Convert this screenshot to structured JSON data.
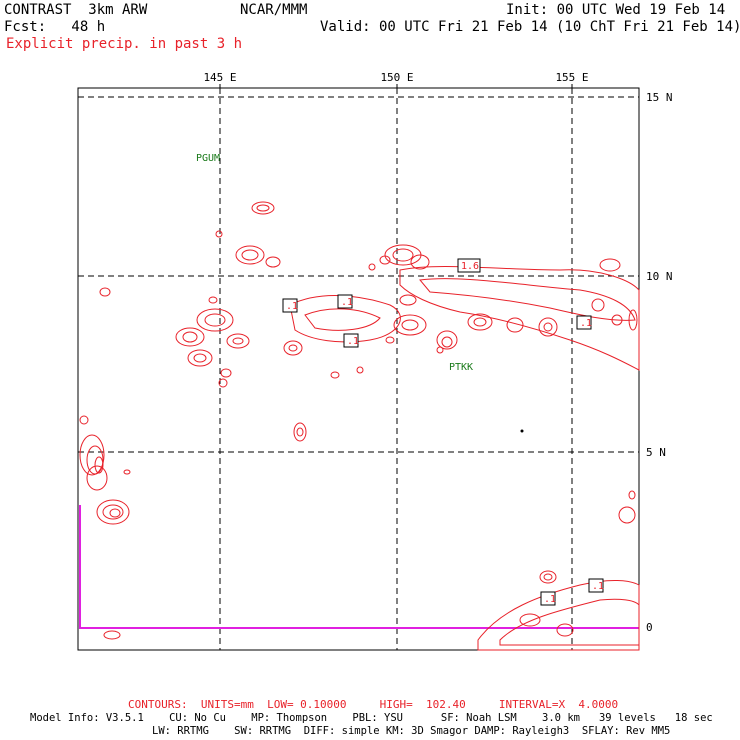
{
  "header": {
    "model_title": "CONTRAST  3km ARW",
    "org": "NCAR/MMM",
    "init": "Init: 00 UTC Wed 19 Feb 14",
    "fcst": "Fcst:   48 h",
    "valid": "Valid: 00 UTC Fri 21 Feb 14 (10 ChT Fri 21 Feb 14)",
    "field": "Explicit precip. in past 3 h"
  },
  "map": {
    "lon_labels": [
      "145 E",
      "150 E",
      "155 E"
    ],
    "lat_labels": [
      "15 N",
      "10 N",
      "5 N",
      "0"
    ],
    "stations": [
      "PGUM",
      "PTKK"
    ],
    "contour_labels": [
      ".1",
      ".1",
      ".1",
      "1.6",
      ".1",
      ".1",
      ".1"
    ],
    "colors": {
      "precip": "#e8222a",
      "grid": "#000000",
      "station": "#1a7a1a",
      "boundary": "#e020e0"
    }
  },
  "footer": {
    "contours": "CONTOURS:  UNITS=mm  LOW= 0.10000     HIGH=  102.40     INTERVAL=X  4.0000",
    "model_info_1": "Model Info: V3.5.1    CU: No Cu    MP: Thompson    PBL: YSU      SF: Noah LSM    3.0 km   39 levels   18 sec",
    "model_info_2": "LW: RRTMG    SW: RRTMG  DIFF: simple KM: 3D Smagor DAMP: Rayleigh3  SFLAY: Rev MM5"
  }
}
